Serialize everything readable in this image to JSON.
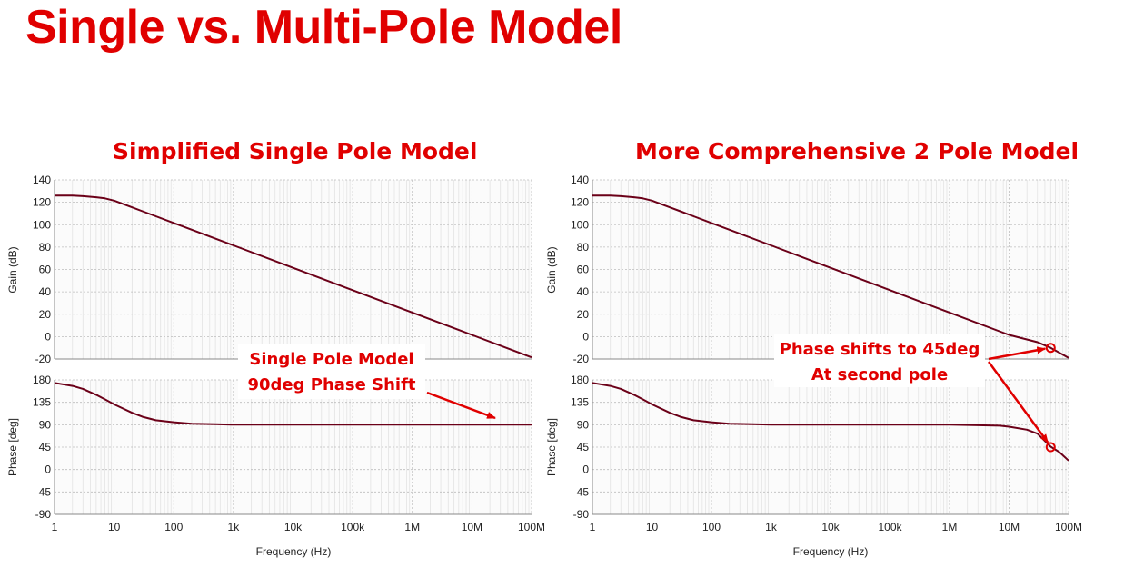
{
  "slide": {
    "title": "Single vs. Multi-Pole Model"
  },
  "colors": {
    "accent": "#e00000",
    "trace": "#6b0018",
    "grid": "#c8c8c8"
  },
  "chart_data": [
    {
      "type": "line",
      "title": "Simplified Single Pole Model",
      "xlabel": "Frequency (Hz)",
      "x_scale": "log",
      "x_ticks": [
        "1",
        "10",
        "100",
        "1k",
        "10k",
        "100k",
        "1M",
        "10M",
        "100M"
      ],
      "xlim": [
        1,
        100000000
      ],
      "gain": {
        "ylabel": "Gain (dB)",
        "ylim": [
          -20,
          140
        ],
        "y_ticks": [
          "140",
          "120",
          "100",
          "80",
          "60",
          "40",
          "20",
          "0",
          "-20"
        ],
        "series": [
          {
            "x": [
              1,
              2,
              3,
              5,
              7,
              10,
              20,
              30,
              50,
              100,
              1000,
              10000,
              100000,
              1000000,
              10000000,
              100000000
            ],
            "values": [
              126,
              126,
              125.5,
              124.5,
              123.5,
              121.5,
              115.5,
              112,
              107.5,
              101.5,
              81.5,
              61.5,
              41.5,
              21.5,
              1.5,
              -18.5
            ]
          }
        ]
      },
      "phase": {
        "ylabel": "Phase [deg]",
        "ylim": [
          -90,
          180
        ],
        "y_ticks": [
          "180",
          "135",
          "90",
          "45",
          "0",
          "-45",
          "-90"
        ],
        "series": [
          {
            "x": [
              1,
              2,
              3,
              5,
              7,
              10,
              20,
              30,
              50,
              100,
              200,
              500,
              1000,
              10000,
              100000,
              1000000,
              10000000,
              100000000
            ],
            "values": [
              174,
              168,
              162,
              150,
              141,
              131,
              114,
              106,
              99,
              95,
              92,
              91,
              90,
              90,
              90,
              90,
              90,
              90
            ]
          }
        ]
      },
      "annotations": [
        {
          "text": "Single Pole Model"
        },
        {
          "text": "90deg Phase Shift"
        }
      ]
    },
    {
      "type": "line",
      "title": "More Comprehensive 2 Pole Model",
      "xlabel": "Frequency (Hz)",
      "x_scale": "log",
      "x_ticks": [
        "1",
        "10",
        "100",
        "1k",
        "10k",
        "100k",
        "1M",
        "10M",
        "100M"
      ],
      "xlim": [
        1,
        100000000
      ],
      "gain": {
        "ylabel": "Gain (dB)",
        "ylim": [
          -20,
          140
        ],
        "y_ticks": [
          "140",
          "120",
          "100",
          "80",
          "60",
          "40",
          "20",
          "0",
          "-20"
        ],
        "series": [
          {
            "x": [
              1,
              2,
              3,
              5,
              7,
              10,
              20,
              30,
              50,
              100,
              1000,
              10000,
              100000,
              1000000,
              10000000,
              30000000,
              50000000,
              100000000
            ],
            "values": [
              126,
              126,
              125.5,
              124.5,
              123.5,
              121.5,
              115.5,
              112,
              107.5,
              101.5,
              81.5,
              61.5,
              41.5,
              21.5,
              1.5,
              -5,
              -10,
              -19
            ]
          }
        ]
      },
      "phase": {
        "ylabel": "Phase [deg]",
        "ylim": [
          -90,
          180
        ],
        "y_ticks": [
          "180",
          "135",
          "90",
          "45",
          "0",
          "-45",
          "-90"
        ],
        "series": [
          {
            "x": [
              1,
              2,
              3,
              5,
              7,
              10,
              20,
              30,
              50,
              100,
              200,
              500,
              1000,
              10000,
              100000,
              1000000,
              3000000,
              7000000,
              10000000,
              20000000,
              30000000,
              50000000,
              70000000,
              100000000
            ],
            "values": [
              174,
              168,
              162,
              150,
              141,
              131,
              114,
              106,
              99,
              95,
              92,
              91,
              90,
              90,
              90,
              90,
              89,
              88,
              86,
              80,
              72,
              46,
              35,
              18
            ]
          }
        ]
      },
      "markers": [
        {
          "panel": "gain",
          "x": 50000000,
          "y": -10
        },
        {
          "panel": "phase",
          "x": 50000000,
          "y": 45
        }
      ],
      "annotations": [
        {
          "text": "Phase shifts to 45deg"
        },
        {
          "text": "At second pole"
        }
      ]
    }
  ]
}
